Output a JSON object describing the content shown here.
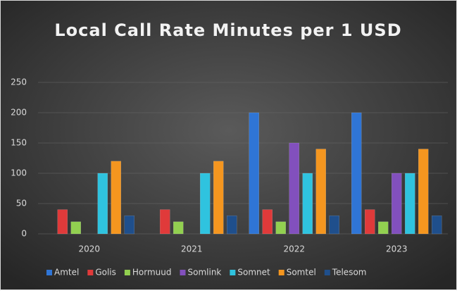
{
  "chart_data": {
    "type": "bar",
    "title": "Local Call Rate Minutes per 1 USD",
    "categories": [
      "2020",
      "2021",
      "2022",
      "2023"
    ],
    "series": [
      {
        "name": "Amtel",
        "color": "#2f75d6",
        "values": [
          0,
          0,
          200,
          200
        ]
      },
      {
        "name": "Golis",
        "color": "#e03a3a",
        "values": [
          40,
          40,
          40,
          40
        ]
      },
      {
        "name": "Hormuud",
        "color": "#92d050",
        "values": [
          20,
          20,
          20,
          20
        ]
      },
      {
        "name": "Somlink",
        "color": "#8250bd",
        "values": [
          0,
          0,
          150,
          100
        ]
      },
      {
        "name": "Somnet",
        "color": "#2fc3df",
        "values": [
          100,
          100,
          100,
          100
        ]
      },
      {
        "name": "Somtel",
        "color": "#f5961f",
        "values": [
          120,
          120,
          140,
          140
        ]
      },
      {
        "name": "Telesom",
        "color": "#1f4f8c",
        "values": [
          30,
          30,
          30,
          30
        ]
      }
    ],
    "ylim": [
      0,
      250
    ],
    "yticks": [
      0,
      50,
      100,
      150,
      200,
      250
    ],
    "grid": true,
    "legend": "bottom"
  }
}
